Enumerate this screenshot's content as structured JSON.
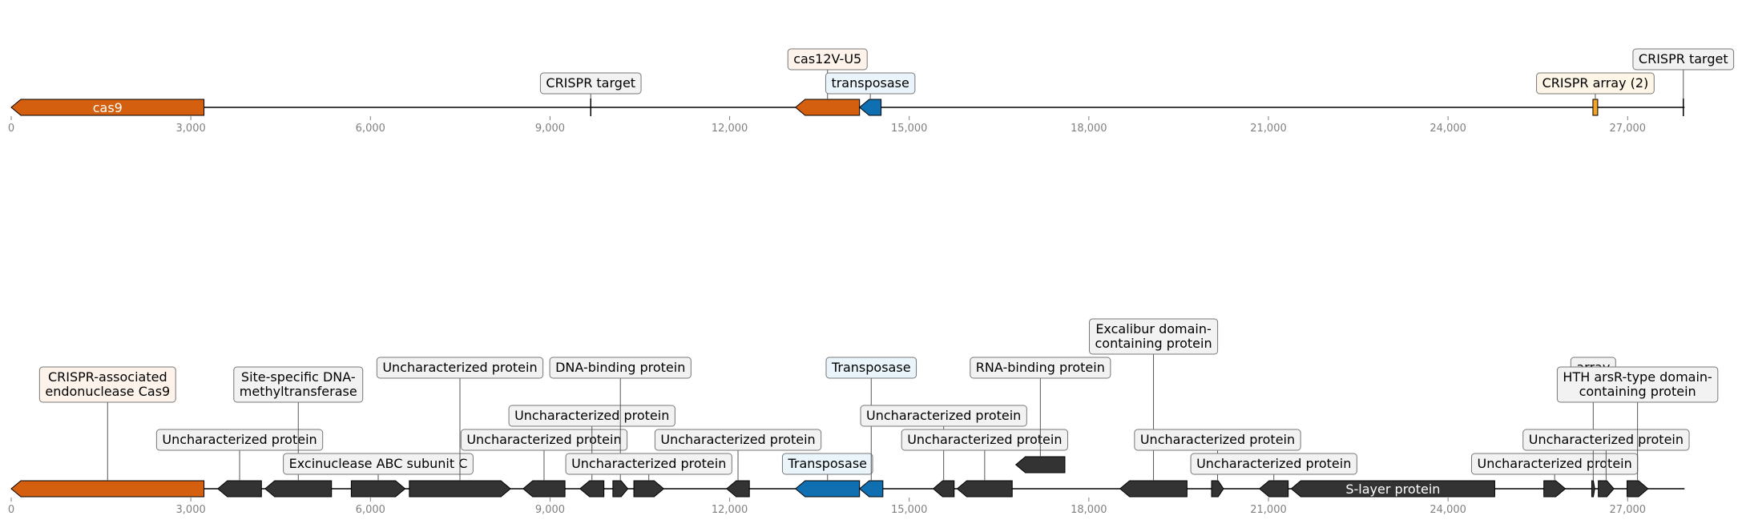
{
  "map_top": {
    "axis": {
      "min": 0,
      "max": 28000,
      "length": 27950
    },
    "ticks": [
      "0",
      "3,000",
      "6,000",
      "9,000",
      "12,000",
      "15,000",
      "18,000",
      "21,000",
      "24,000",
      "27,000"
    ],
    "features": [
      {
        "id": "cas9",
        "start": 0,
        "end": 3220,
        "strand": -1,
        "color": "#d35f0f",
        "label": "cas9",
        "inside": true
      },
      {
        "id": "crispr-target-1",
        "start": 9680,
        "end": 9680,
        "strand": 0,
        "color": "#000000",
        "label": "CRISPR target",
        "level": 0
      },
      {
        "id": "cas12v",
        "start": 13100,
        "end": 14170,
        "strand": -1,
        "color": "#d35f0f",
        "label": "cas12V-U5",
        "level": 1,
        "fill": "#fdf3ea"
      },
      {
        "id": "transposase",
        "start": 14170,
        "end": 14530,
        "strand": -1,
        "color": "#0f6fb1",
        "label": "transposase",
        "level": 0,
        "fill": "#eaf4fb"
      },
      {
        "id": "crispr-array",
        "start": 26420,
        "end": 26500,
        "strand": 0,
        "color": "#f2a422",
        "label": "CRISPR array (2)",
        "level": 0,
        "fill": "#fdf6e6"
      },
      {
        "id": "crispr-target-2",
        "start": 27930,
        "end": 27930,
        "strand": 0,
        "color": "#000000",
        "label": "CRISPR target",
        "level": 1
      }
    ]
  },
  "map_bottom": {
    "axis": {
      "min": 0,
      "max": 28000,
      "length": 27950
    },
    "ticks": [
      "0",
      "3,000",
      "6,000",
      "9,000",
      "12,000",
      "15,000",
      "18,000",
      "21,000",
      "24,000",
      "27,000"
    ],
    "features": [
      {
        "id": "cas9-protein",
        "start": 0,
        "end": 3220,
        "strand": -1,
        "color": "#d35f0f",
        "label": "CRISPR-associated\nendonuclease Cas9",
        "level": 3,
        "fill": "#fdf3ea"
      },
      {
        "id": "uncharacterized-1",
        "start": 3450,
        "end": 4180,
        "strand": -1,
        "color": "#333333",
        "label": "Uncharacterized protein",
        "level": 1
      },
      {
        "id": "methyltransferase",
        "start": 4240,
        "end": 5350,
        "strand": -1,
        "color": "#333333",
        "label": "Site-specific DNA-\nmethyltransferase",
        "level": 3
      },
      {
        "id": "uvrc",
        "start": 5680,
        "end": 6580,
        "strand": 1,
        "color": "#333333",
        "label": "Excinuclease ABC subunit C",
        "level": 0
      },
      {
        "id": "uncharacterized-2",
        "start": 6650,
        "end": 8340,
        "strand": 1,
        "color": "#333333",
        "label": "Uncharacterized protein",
        "level": 4
      },
      {
        "id": "uncharacterized-3",
        "start": 8550,
        "end": 9250,
        "strand": -1,
        "color": "#333333",
        "label": "Uncharacterized protein",
        "level": 1
      },
      {
        "id": "uncharacterized-4",
        "start": 9500,
        "end": 9900,
        "strand": -1,
        "color": "#333333",
        "label": "Uncharacterized protein",
        "level": 2
      },
      {
        "id": "dna-binding",
        "start": 10050,
        "end": 10300,
        "strand": 1,
        "color": "#333333",
        "label": "DNA-binding protein",
        "level": 4
      },
      {
        "id": "uncharacterized-5",
        "start": 10400,
        "end": 10900,
        "strand": 1,
        "color": "#333333",
        "label": "Uncharacterized protein",
        "level": 0
      },
      {
        "id": "uncharacterized-6",
        "start": 11950,
        "end": 12330,
        "strand": -1,
        "color": "#333333",
        "label": "Uncharacterized protein",
        "level": 1
      },
      {
        "id": "transposase-2",
        "start": 13100,
        "end": 14170,
        "strand": -1,
        "color": "#0f6fb1",
        "label": "Transposase",
        "level": 0,
        "fill": "#eaf4fb"
      },
      {
        "id": "transposase-1",
        "start": 14170,
        "end": 14560,
        "strand": -1,
        "color": "#0f6fb1",
        "label": "Transposase",
        "level": 4,
        "fill": "#eaf4fb"
      },
      {
        "id": "uncharacterized-7",
        "start": 15400,
        "end": 15750,
        "strand": -1,
        "color": "#333333",
        "label": "Uncharacterized protein",
        "level": 2
      },
      {
        "id": "uncharacterized-8",
        "start": 15800,
        "end": 16720,
        "strand": -1,
        "color": "#333333",
        "label": "Uncharacterized protein",
        "level": 1
      },
      {
        "id": "rna-binding",
        "start": 16780,
        "end": 17600,
        "strand": -1,
        "color": "#333333",
        "label": "RNA-binding protein",
        "level": 4,
        "track": 1
      },
      {
        "id": "excalibur",
        "start": 18520,
        "end": 19640,
        "strand": -1,
        "color": "#333333",
        "label": "Excalibur domain-\ncontaining protein",
        "level": 5
      },
      {
        "id": "uncharacterized-9",
        "start": 20050,
        "end": 20250,
        "strand": 1,
        "color": "#333333",
        "label": "Uncharacterized protein",
        "level": 1
      },
      {
        "id": "uncharacterized-10",
        "start": 20850,
        "end": 21330,
        "strand": -1,
        "color": "#333333",
        "label": "Uncharacterized protein",
        "level": 0
      },
      {
        "id": "s-layer",
        "start": 21380,
        "end": 24780,
        "strand": -1,
        "color": "#333333",
        "label": "S-layer protein",
        "inside": true
      },
      {
        "id": "uncharacterized-11",
        "start": 25600,
        "end": 25960,
        "strand": 1,
        "color": "#333333",
        "label": "Uncharacterized protein",
        "level": 0
      },
      {
        "id": "array",
        "start": 26400,
        "end": 26450,
        "strand": 1,
        "color": "#333333",
        "label": "array",
        "level": 4
      },
      {
        "id": "uncharacterized-12",
        "start": 26510,
        "end": 26770,
        "strand": 1,
        "color": "#333333",
        "label": "Uncharacterized protein",
        "level": 1
      },
      {
        "id": "hth-arsr",
        "start": 26990,
        "end": 27340,
        "strand": 1,
        "color": "#333333",
        "label": "HTH arsR-type domain-\ncontaining protein",
        "level": 3
      }
    ]
  }
}
